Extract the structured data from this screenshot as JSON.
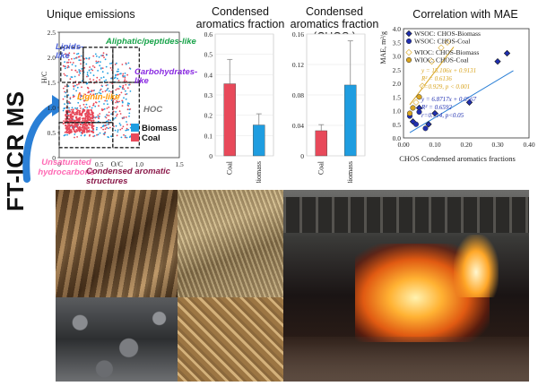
{
  "titles": {
    "unique": "Unique emissions",
    "condensed": "Condensed aromatics fraction",
    "chos": "Condensed aromatics fraction (CHOS )",
    "corr": "Correlation with MAE"
  },
  "side_label": "FT-ICR MS",
  "vk_labels": {
    "lipids": "Lipids-like",
    "aliphatic": "Aliphatic/peptides-like",
    "carbohydrates": "Carbohydrates-like",
    "lignin": "Lignin-like",
    "hoc": "HOC",
    "unsaturated": "Unsaturated hydrocarbons",
    "condensed": "Condensed aromatic structures",
    "legend_biomass": "Biomass",
    "legend_coal": "Coal",
    "xlabel": "O/C",
    "ylabel": "H/C"
  },
  "colors": {
    "biomass": "#1f9de0",
    "coal": "#e8495a",
    "lipids": "#4a5fd6",
    "aliphatic": "#19a34a",
    "carbohydrates": "#8a2be2",
    "lignin": "#ff9900",
    "unsaturated": "#ff69b4",
    "condensed": "#8b1a4a",
    "wsoc": "#1f2fb0",
    "wioc": "#d9a520"
  },
  "chart_data": [
    {
      "type": "scatter",
      "title": "Unique emissions",
      "xlabel": "O/C",
      "ylabel": "H/C",
      "xlim": [
        0,
        1.5
      ],
      "ylim": [
        0,
        2.5
      ],
      "xticks": [
        "0",
        "0.5",
        "1.0",
        "1.5"
      ],
      "yticks": [
        "0",
        "0.5",
        "1.0",
        "1.5",
        "2.0",
        "2.5"
      ],
      "series": [
        {
          "name": "Biomass",
          "region": {
            "x": [
              0.05,
              0.9
            ],
            "y": [
              0.4,
              2.1
            ]
          }
        },
        {
          "name": "Coal",
          "region": {
            "x": [
              0.05,
              0.9
            ],
            "y": [
              0.4,
              2.1
            ]
          }
        }
      ]
    },
    {
      "type": "bar",
      "title": "Condensed aromatics fraction",
      "categories": [
        "Coal",
        "Biomass"
      ],
      "values": [
        0.355,
        0.152
      ],
      "errors": [
        0.12,
        0.055
      ],
      "ylim": [
        0,
        0.6
      ],
      "yticks": [
        "0",
        "0.1",
        "0.2",
        "0.3",
        "0.4",
        "0.5",
        "0.6"
      ]
    },
    {
      "type": "bar",
      "title": "Condensed aromatics fraction (CHOS )",
      "categories": [
        "Coal",
        "Biomass"
      ],
      "values": [
        0.033,
        0.093
      ],
      "errors": [
        0.008,
        0.058
      ],
      "ylim": [
        0,
        0.16
      ],
      "yticks": [
        "0",
        "0.04",
        "0.08",
        "0.12",
        "0.16"
      ]
    },
    {
      "type": "scatter",
      "title": "Correlation with MAE",
      "xlabel": "CHOS Condensed aromatics fractions",
      "ylabel": "MAE, m²/g",
      "xlim": [
        0,
        0.4
      ],
      "ylim": [
        0,
        4
      ],
      "xticks": [
        "0.00",
        "0.10",
        "0.20",
        "0.30",
        "0.40"
      ],
      "yticks": [
        "0.0",
        "0.5",
        "1.0",
        "1.5",
        "2.0",
        "2.5",
        "3.0",
        "3.5",
        "4.0"
      ],
      "series": [
        {
          "name": "WSOC: CHOS-Biomass",
          "x": [
            0.03,
            0.05,
            0.08,
            0.1,
            0.21,
            0.3,
            0.33
          ],
          "y": [
            0.6,
            1.1,
            0.5,
            0.9,
            1.3,
            2.8,
            3.1
          ]
        },
        {
          "name": "WSOC: CHOS-Coal",
          "x": [
            0.02,
            0.04,
            0.05,
            0.07
          ],
          "y": [
            0.8,
            0.5,
            0.95,
            0.35
          ]
        },
        {
          "name": "WIOC: CHOS-Biomass",
          "x": [
            0.04,
            0.06,
            0.09,
            0.12,
            0.14
          ],
          "y": [
            1.3,
            1.9,
            2.8,
            3.3,
            3.5
          ]
        },
        {
          "name": "WIOC: CHOS-Coal",
          "x": [
            0.02,
            0.03,
            0.05
          ],
          "y": [
            0.9,
            1.1,
            1.5
          ]
        }
      ],
      "annotations": [
        "y = 15.106x + 0.9131",
        "R² = 0.6136",
        "r=0.929, p < 0.001",
        "y = 6.8717x + 0.0567",
        "R² = 0.6592",
        "r=0.714, p<0.05"
      ],
      "legend": [
        "WSOC: CHOS-Biomass",
        "WSOC: CHOS-Coal",
        "WIOC: CHOS-Biomass",
        "WIOC: CHOS-Coal"
      ]
    }
  ]
}
